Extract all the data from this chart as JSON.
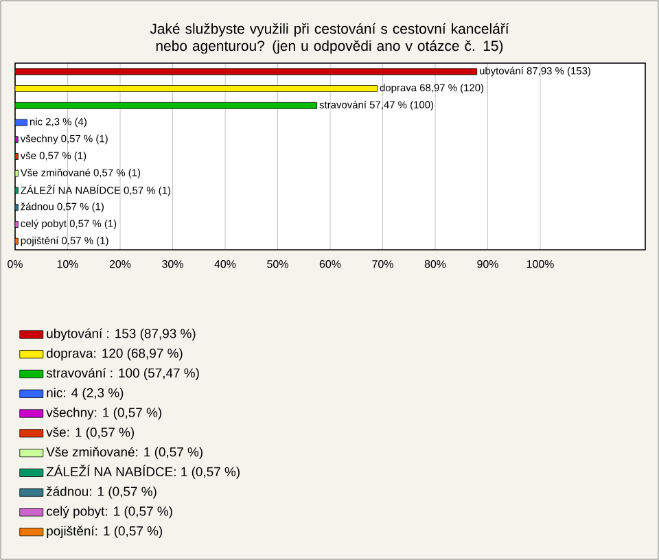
{
  "chart_data": {
    "type": "bar",
    "orientation": "horizontal",
    "title": "Jaké službyste využili při cestování s cestovní kanceláří nebo agenturou? (jen u odpovědi ano v otázce č. 15)",
    "categories": [
      null,
      null,
      null,
      null,
      null,
      null,
      null,
      null,
      null,
      null,
      null
    ],
    "series": [
      {
        "name": "ubytování : 153 (87,93 %)",
        "color": "#cc0000",
        "values": [
          87.93,
          null,
          null,
          null,
          null,
          null,
          null,
          null,
          null,
          null,
          null
        ],
        "value_labels": [
          "ubytování  87,93 % (153)",
          null,
          null,
          null,
          null,
          null,
          null,
          null,
          null,
          null,
          null
        ]
      },
      {
        "name": "doprava: 120 (68,97 %)",
        "color": "#ffee00",
        "values": [
          null,
          68.97,
          null,
          null,
          null,
          null,
          null,
          null,
          null,
          null,
          null
        ],
        "value_labels": [
          null,
          "doprava 68,97 % (120)",
          null,
          null,
          null,
          null,
          null,
          null,
          null,
          null,
          null
        ]
      },
      {
        "name": "stravování : 100 (57,47 %)",
        "color": "#00bb00",
        "values": [
          null,
          null,
          57.47,
          null,
          null,
          null,
          null,
          null,
          null,
          null,
          null
        ],
        "value_labels": [
          null,
          null,
          "stravování  57,47 % (100)",
          null,
          null,
          null,
          null,
          null,
          null,
          null,
          null
        ]
      },
      {
        "name": "nic: 4 (2,3 %)",
        "color": "#3366ff",
        "values": [
          null,
          null,
          null,
          2.3,
          null,
          null,
          null,
          null,
          null,
          null,
          null
        ],
        "value_labels": [
          null,
          null,
          null,
          "nic 2,3 % (4)",
          null,
          null,
          null,
          null,
          null,
          null,
          null
        ]
      },
      {
        "name": "všechny: 1 (0,57 %)",
        "color": "#cc00cc",
        "values": [
          null,
          null,
          null,
          null,
          0.57,
          null,
          null,
          null,
          null,
          null,
          null
        ],
        "value_labels": [
          null,
          null,
          null,
          null,
          "všechny 0,57 % (1)",
          null,
          null,
          null,
          null,
          null,
          null
        ]
      },
      {
        "name": "vše: 1 (0,57 %)",
        "color": "#dd3300",
        "values": [
          null,
          null,
          null,
          null,
          null,
          0.57,
          null,
          null,
          null,
          null,
          null
        ],
        "value_labels": [
          null,
          null,
          null,
          null,
          null,
          "vše 0,57 % (1)",
          null,
          null,
          null,
          null,
          null
        ]
      },
      {
        "name": "Vše zmiňované: 1 (0,57 %)",
        "color": "#ccff99",
        "values": [
          null,
          null,
          null,
          null,
          null,
          null,
          0.57,
          null,
          null,
          null,
          null
        ],
        "value_labels": [
          null,
          null,
          null,
          null,
          null,
          null,
          "Vše zmiňované 0,57 % (1)",
          null,
          null,
          null,
          null
        ]
      },
      {
        "name": "ZÁLEŽÍ NA NABÍDCE: 1 (0,57 %)",
        "color": "#009966",
        "values": [
          null,
          null,
          null,
          null,
          null,
          null,
          null,
          0.57,
          null,
          null,
          null
        ],
        "value_labels": [
          null,
          null,
          null,
          null,
          null,
          null,
          null,
          "ZÁLEŽÍ NA NABÍDCE 0,57 % (1)",
          null,
          null,
          null
        ]
      },
      {
        "name": "žádnou: 1 (0,57 %)",
        "color": "#337788",
        "values": [
          null,
          null,
          null,
          null,
          null,
          null,
          null,
          null,
          0.57,
          null,
          null
        ],
        "value_labels": [
          null,
          null,
          null,
          null,
          null,
          null,
          null,
          null,
          "žádnou 0,57 % (1)",
          null,
          null
        ]
      },
      {
        "name": "celý pobyt: 1 (0,57 %)",
        "color": "#cc66cc",
        "values": [
          null,
          null,
          null,
          null,
          null,
          null,
          null,
          null,
          null,
          0.57,
          null
        ],
        "value_labels": [
          null,
          null,
          null,
          null,
          null,
          null,
          null,
          null,
          null,
          "celý pobyt 0,57 % (1)",
          null
        ]
      },
      {
        "name": "pojištění: 1 (0,57 %)",
        "color": "#ee7700",
        "values": [
          null,
          null,
          null,
          null,
          null,
          null,
          null,
          null,
          null,
          null,
          0.57
        ],
        "value_labels": [
          null,
          null,
          null,
          null,
          null,
          null,
          null,
          null,
          null,
          null,
          "pojištění 0,57 % (1)"
        ]
      }
    ],
    "xlim": [
      0,
      120
    ],
    "xticks": [
      {
        "value": 0,
        "label": "0%"
      },
      {
        "value": 10,
        "label": "10%"
      },
      {
        "value": 20,
        "label": "20%"
      },
      {
        "value": 30,
        "label": "30%"
      },
      {
        "value": 40,
        "label": "40%"
      },
      {
        "value": 50,
        "label": "50%"
      },
      {
        "value": 60,
        "label": "60%"
      },
      {
        "value": 70,
        "label": "70%"
      },
      {
        "value": 80,
        "label": "80%"
      },
      {
        "value": 90,
        "label": "90%"
      },
      {
        "value": 100,
        "label": "100%"
      }
    ],
    "grid": "x",
    "legend": "bottom"
  }
}
